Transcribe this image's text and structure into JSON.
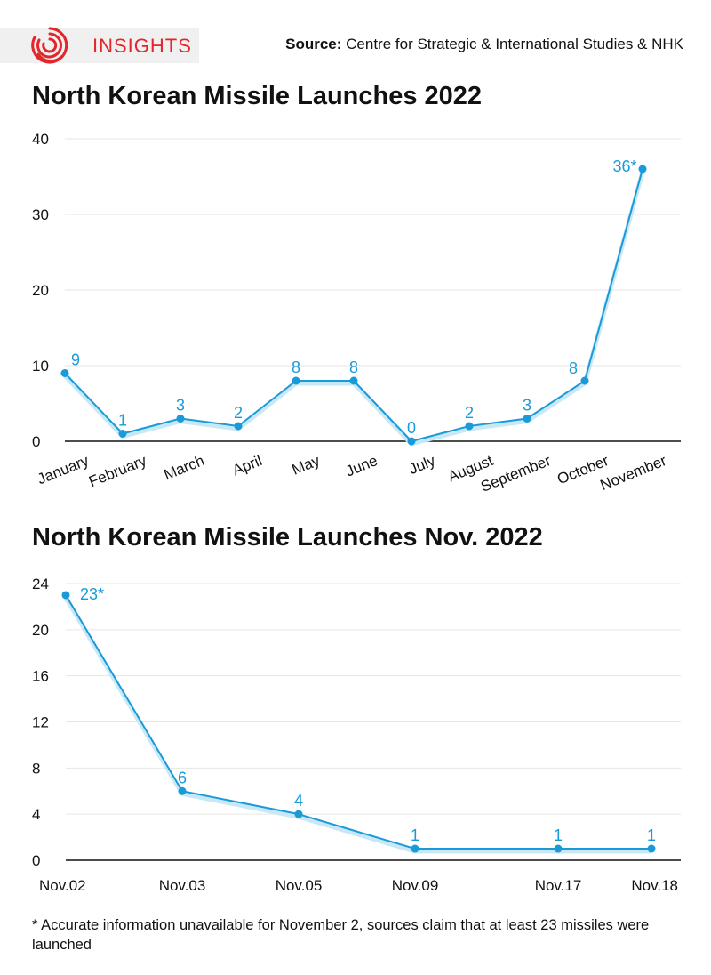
{
  "brand": {
    "name": "INSIGHTS",
    "logo_icon": "insights-swirl-logo-icon",
    "color": "#e4262c"
  },
  "source": {
    "label": "Source:",
    "text": "Centre for Strategic & International Studies & NHK"
  },
  "footnote": "* Accurate information unavailable for November 2, sources claim that at least 23 missiles were launched",
  "colors": {
    "line": "#1a9ad9",
    "shadow": "#c9e8f6",
    "grid": "#e6e6e6",
    "axis": "#111111"
  },
  "chart_data": [
    {
      "type": "line",
      "title": "North Korean Missile Launches 2022",
      "xlabel": "",
      "ylabel": "",
      "categories": [
        "January",
        "February",
        "March",
        "April",
        "May",
        "June",
        "July",
        "August",
        "September",
        "October",
        "November"
      ],
      "values": [
        9,
        1,
        3,
        2,
        8,
        8,
        0,
        2,
        3,
        8,
        36
      ],
      "data_labels": [
        "9",
        "1",
        "3",
        "2",
        "8",
        "8",
        "0",
        "2",
        "3",
        "8",
        "36*"
      ],
      "ylim": [
        0,
        40
      ],
      "yticks": [
        0,
        10,
        20,
        30,
        40
      ],
      "grid": true,
      "legend": "none"
    },
    {
      "type": "line",
      "title": "North Korean Missile Launches Nov. 2022",
      "xlabel": "",
      "ylabel": "",
      "categories": [
        "Nov.02",
        "Nov.03",
        "Nov.05",
        "Nov.09",
        "Nov.17",
        "Nov.18"
      ],
      "values": [
        23,
        6,
        4,
        1,
        1,
        1
      ],
      "data_labels": [
        "23*",
        "6",
        "4",
        "1",
        "1",
        "1"
      ],
      "ylim": [
        0,
        24
      ],
      "yticks": [
        0,
        4,
        8,
        12,
        16,
        20,
        24
      ],
      "grid": true,
      "legend": "none"
    }
  ]
}
